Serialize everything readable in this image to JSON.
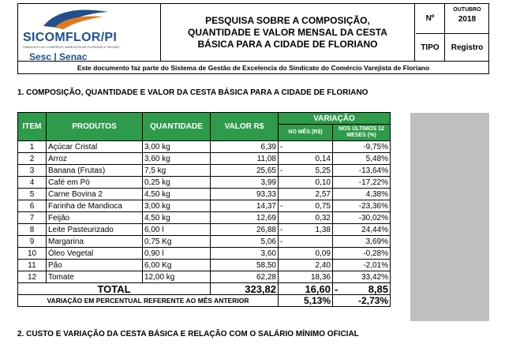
{
  "header": {
    "brand": "SICOMFLOR/PI",
    "brand_sub": "SINDICATO DO COMÉRCIO VAREJISTA DE FLORIANO E REGIÃO",
    "partners": "Sesc | Senac",
    "title": "PESQUISA SOBRE A COMPOSIÇÃO, QUANTIDADE E VALOR MENSAL DA CESTA BÁSICA PARA A CIDADE DE FLORIANO",
    "n_label": "Nº",
    "month": "OUTUBRO",
    "year": "2018",
    "tipo_label": "TIPO",
    "tipo_value": "Registro"
  },
  "doc_note": "Este documento faz parte do Sistema de Gestão de Excelencia do Sindicato do Comércio Varejista de Floriano",
  "section1": "1. COMPOSIÇÃO, QUANTIDADE E VALOR DA CESTA BÁSICA PARA A CIDADE DE FLORIANO",
  "table": {
    "headers": {
      "item": "ITEM",
      "produtos": "PRODUTOS",
      "quantidade": "QUANTIDADE",
      "valor": "VALOR R$",
      "variacao": "VARIAÇÃO",
      "no_mes": "NO MÊS (R$)",
      "ultimos": "NOS ÚLTIMOS 12 MESES (%)"
    },
    "rows": [
      {
        "item": "1",
        "produto": "Açúcar Cristal",
        "qtd": "3,00 kg",
        "valor": "6,39",
        "sign": "-",
        "mes": "",
        "ult": "-9,75%"
      },
      {
        "item": "2",
        "produto": "Arroz",
        "qtd": "3,60 kg",
        "valor": "11,08",
        "sign": "",
        "mes": "0,14",
        "ult": "5,48%"
      },
      {
        "item": "3",
        "produto": "Banana (Frutas)",
        "qtd": "7,5 kg",
        "valor": "25,65",
        "sign": "-",
        "mes": "5,25",
        "ult": "-13,64%"
      },
      {
        "item": "4",
        "produto": "Café em Pó",
        "qtd": "0,25 kg",
        "valor": "3,99",
        "sign": "",
        "mes": "0,10",
        "ult": "-17,22%"
      },
      {
        "item": "5",
        "produto": "Carne Bovina 2",
        "qtd": "4,50 kg",
        "valor": "93,33",
        "sign": "",
        "mes": "2,57",
        "ult": "4,38%"
      },
      {
        "item": "6",
        "produto": "Farinha de Mandioca",
        "qtd": "3,00 kg",
        "valor": "14,37",
        "sign": "-",
        "mes": "0,75",
        "ult": "-23,36%"
      },
      {
        "item": "7",
        "produto": "Feijão",
        "qtd": "4,50 kg",
        "valor": "12,69",
        "sign": "",
        "mes": "0,32",
        "ult": "-30,02%"
      },
      {
        "item": "8",
        "produto": "Leite Pasteurizado",
        "qtd": "6,00 l",
        "valor": "26,88",
        "sign": "-",
        "mes": "1,38",
        "ult": "24,44%"
      },
      {
        "item": "9",
        "produto": "Margarina",
        "qtd": "0,75 Kg",
        "valor": "5,06",
        "sign": "-",
        "mes": "",
        "ult": "3,69%"
      },
      {
        "item": "10",
        "produto": "Óleo Vegetal",
        "qtd": "0,90 l",
        "valor": "3,60",
        "sign": "",
        "mes": "0,09",
        "ult": "-0,28%"
      },
      {
        "item": "11",
        "produto": "Pão",
        "qtd": "6,00 Kg",
        "valor": "58,50",
        "sign": "",
        "mes": "2,40",
        "ult": "-2,01%"
      },
      {
        "item": "12",
        "produto": "Tomate",
        "qtd": "12,00 kg",
        "valor": "62,28",
        "sign": "",
        "mes": "18,36",
        "ult": "33,42%"
      }
    ],
    "total": {
      "label": "TOTAL",
      "valor": "323,82",
      "mes": "16,60",
      "sign": "-",
      "ult": "8,85"
    },
    "variacao": {
      "label": "VARIAÇÃO EM PERCENTUAL REFERENTE AO MÊS ANTERIOR",
      "mes": "5,13%",
      "ult": "-2,73%"
    }
  },
  "section2": "2. CUSTO E VARIAÇÃO DA CESTA BÁSICA E RELAÇÃO COM O SALÁRIO MÍNIMO OFICIAL",
  "colors": {
    "header_green": "#2e9b4b",
    "brand_blue": "#1f4f8f",
    "accent_orange": "#e07a1f",
    "side_gray": "#bfbfbf"
  }
}
